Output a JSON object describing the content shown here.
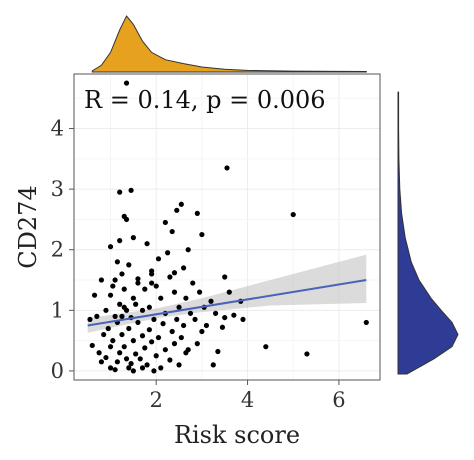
{
  "chart_data": {
    "type": "scatter",
    "xlabel": "Risk score",
    "ylabel": "CD274",
    "annotation": "R = 0.14, p = 0.006",
    "xlim": [
      0.2,
      6.9
    ],
    "ylim": [
      -0.15,
      4.9
    ],
    "x_ticks": [
      2,
      4,
      6
    ],
    "y_ticks": [
      0,
      1,
      2,
      3,
      4
    ],
    "grid": true,
    "regression": {
      "x": [
        0.5,
        6.6
      ],
      "y": [
        0.75,
        1.5
      ],
      "band": [
        [
          0.5,
          0.63,
          0.87
        ],
        [
          2.0,
          0.87,
          1.03
        ],
        [
          3.0,
          0.97,
          1.2
        ],
        [
          4.5,
          1.08,
          1.5
        ],
        [
          6.6,
          1.12,
          1.92
        ]
      ]
    },
    "points": {
      "x": [
        1.35,
        3.55,
        1.45,
        2.55,
        2.45,
        2.9,
        1.3,
        1.35,
        2.2,
        2.35,
        3.0,
        1.2,
        1.0,
        1.5,
        1.8,
        2.7,
        2.25,
        2.05,
        1.15,
        1.4,
        2.6,
        1.9,
        1.25,
        2.3,
        3.5,
        0.8,
        1.1,
        1.6,
        1.9,
        2.8,
        1.05,
        1.3,
        1.75,
        2.4,
        2.95,
        3.6,
        0.65,
        1.0,
        1.5,
        2.1,
        2.65,
        3.2,
        3.85,
        1.2,
        1.55,
        1.85,
        2.5,
        3.05,
        0.9,
        1.35,
        1.7,
        2.2,
        2.75,
        3.3,
        3.7,
        0.7,
        1.1,
        1.45,
        1.95,
        2.45,
        2.85,
        1.15,
        1.6,
        2.15,
        2.6,
        3.1,
        3.45,
        0.95,
        1.4,
        1.85,
        2.35,
        3.0,
        0.85,
        1.25,
        1.7,
        2.05,
        2.55,
        1.05,
        1.5,
        1.9,
        2.4,
        2.9,
        0.6,
        1.0,
        1.3,
        1.75,
        2.2,
        2.7,
        3.35,
        0.75,
        1.2,
        1.55,
        2.0,
        0.9,
        1.35,
        1.65,
        2.3,
        0.8,
        1.15,
        1.45,
        1.8,
        2.5,
        3.25,
        1.0,
        1.4,
        1.7,
        2.1,
        1.1,
        1.5,
        1.95,
        0.55,
        1.25,
        3.5,
        4.4,
        5.3,
        6.6,
        5.0,
        3.9,
        2.4,
        1.6,
        1.9,
        2.0,
        1.2,
        1.3,
        2.65
      ],
      "y": [
        4.75,
        3.35,
        2.98,
        2.75,
        2.65,
        2.6,
        2.55,
        2.5,
        2.45,
        2.3,
        2.25,
        2.15,
        2.05,
        2.2,
        2.1,
        2.0,
        1.95,
        1.85,
        1.8,
        1.75,
        1.7,
        1.65,
        1.6,
        1.55,
        1.55,
        1.5,
        1.5,
        1.45,
        1.45,
        1.45,
        1.4,
        1.35,
        1.35,
        1.3,
        1.3,
        1.3,
        1.25,
        1.25,
        1.2,
        1.2,
        1.2,
        1.15,
        1.15,
        1.1,
        1.1,
        1.05,
        1.05,
        1.05,
        1.0,
        1.0,
        1.0,
        0.95,
        0.95,
        0.95,
        0.92,
        0.9,
        0.9,
        0.88,
        0.85,
        0.85,
        0.85,
        0.8,
        0.8,
        0.78,
        0.75,
        0.75,
        0.72,
        0.7,
        0.7,
        0.68,
        0.65,
        0.65,
        0.6,
        0.6,
        0.58,
        0.55,
        0.55,
        0.5,
        0.5,
        0.48,
        0.45,
        0.45,
        0.42,
        0.4,
        0.4,
        0.38,
        0.35,
        0.35,
        0.32,
        0.3,
        0.3,
        0.28,
        0.25,
        0.22,
        0.2,
        0.2,
        0.18,
        0.15,
        0.15,
        0.12,
        0.1,
        0.1,
        0.1,
        0.05,
        0.05,
        0.05,
        0.05,
        0.02,
        0.0,
        0.0,
        0.85,
        0.9,
        0.88,
        0.4,
        0.28,
        0.8,
        2.58,
        0.85,
        1.62,
        1.52,
        1.6,
        1.4,
        2.95,
        1.05,
        0.3
      ],
      "color": "#000000"
    },
    "marginal_x": {
      "type": "density",
      "fill": "#E6A11F",
      "x": [
        0.6,
        0.8,
        1.0,
        1.2,
        1.35,
        1.5,
        1.7,
        1.9,
        2.2,
        2.6,
        3.0,
        3.5,
        4.0,
        5.0,
        6.6
      ],
      "density": [
        0.02,
        0.12,
        0.35,
        0.75,
        1.0,
        0.85,
        0.55,
        0.35,
        0.22,
        0.15,
        0.09,
        0.05,
        0.03,
        0.015,
        0.01
      ]
    },
    "marginal_y": {
      "type": "density",
      "fill": "#2F3C96",
      "y": [
        -0.05,
        0.2,
        0.4,
        0.6,
        0.8,
        1.0,
        1.2,
        1.5,
        1.8,
        2.2,
        2.6,
        3.0,
        3.5,
        4.0,
        4.6
      ],
      "density": [
        0.15,
        0.6,
        0.9,
        1.0,
        0.9,
        0.72,
        0.55,
        0.35,
        0.22,
        0.12,
        0.06,
        0.03,
        0.015,
        0.01,
        0.01
      ]
    }
  }
}
